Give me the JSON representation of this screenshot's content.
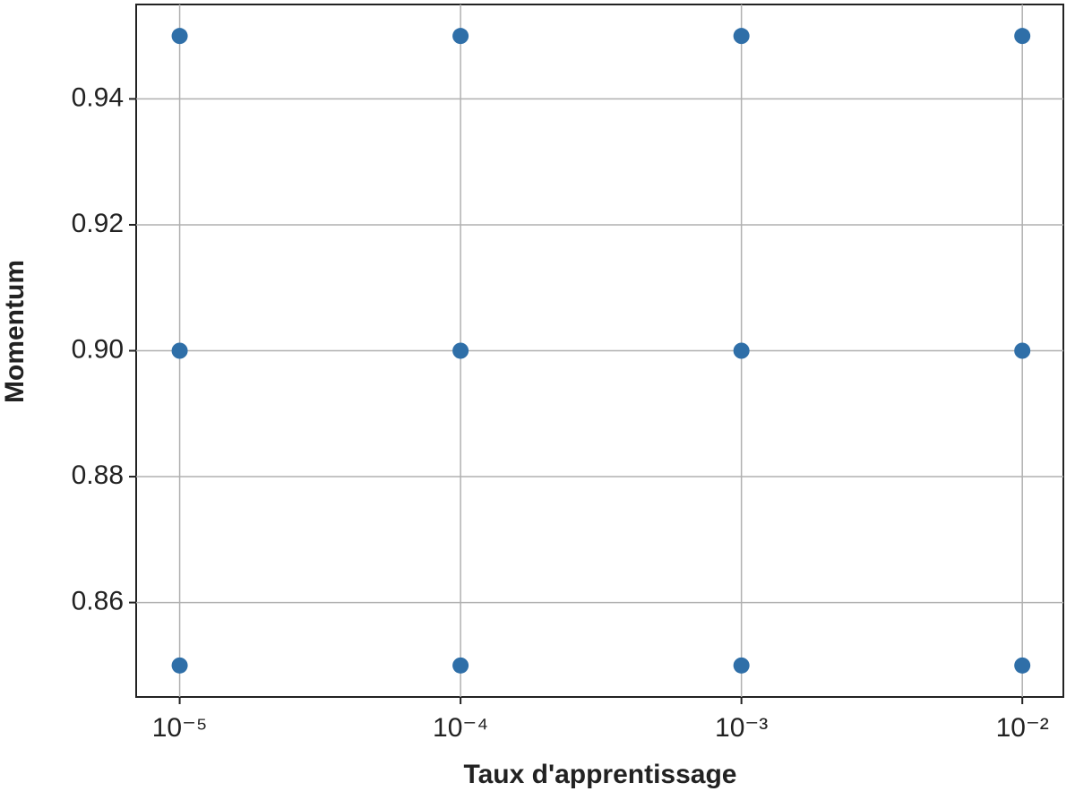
{
  "chart_data": {
    "type": "scatter",
    "xlabel": "Taux d'apprentissage",
    "ylabel": "Momentum",
    "x": [
      1e-05,
      1e-05,
      1e-05,
      0.0001,
      0.0001,
      0.0001,
      0.001,
      0.001,
      0.001,
      0.01,
      0.01,
      0.01
    ],
    "values": [
      0.85,
      0.9,
      0.95,
      0.85,
      0.9,
      0.95,
      0.85,
      0.9,
      0.95,
      0.85,
      0.9,
      0.95
    ],
    "color": "#2f6fa8",
    "xscale": "log",
    "grid": true,
    "xlim": [
      7e-06,
      0.014
    ],
    "ylim": [
      0.845,
      0.955
    ],
    "xticks": [
      {
        "value": 1e-05,
        "label": "10⁻⁵"
      },
      {
        "value": 0.0001,
        "label": "10⁻⁴"
      },
      {
        "value": 0.001,
        "label": "10⁻³"
      },
      {
        "value": 0.01,
        "label": "10⁻²"
      }
    ],
    "yticks": [
      0.86,
      0.88,
      {
        "value": 0.9,
        "label": "0.90"
      },
      0.92,
      0.94
    ]
  }
}
